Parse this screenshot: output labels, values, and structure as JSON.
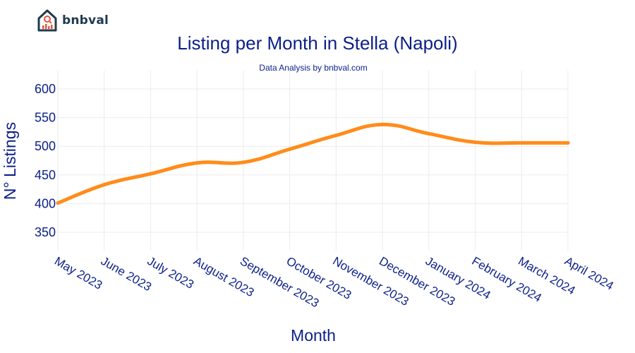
{
  "brand": {
    "logo_text": "bnbval",
    "logo_icon": "house-chart-icon",
    "logo_color": "#1f3b4d",
    "logo_accent": "#e8553a"
  },
  "chart_data": {
    "type": "line",
    "title": "Listing per Month in Stella (Napoli)",
    "subtitle": "Data Analysis by bnbval.com",
    "xlabel": "Month",
    "ylabel": "N° Listings",
    "categories": [
      "May 2023",
      "June 2023",
      "July 2023",
      "August 2023",
      "September 2023",
      "October 2023",
      "November 2023",
      "December 2023",
      "January 2024",
      "February 2024",
      "March 2024",
      "April 2024"
    ],
    "series": [
      {
        "values": [
          401,
          433,
          452,
          471,
          472,
          495,
          519,
          538,
          522,
          507,
          506,
          506
        ],
        "color": "#ff8c1a"
      }
    ],
    "yticks": [
      350,
      400,
      450,
      500,
      550,
      600
    ],
    "ylim": [
      318,
      632
    ],
    "grid": true,
    "legend": "none"
  }
}
